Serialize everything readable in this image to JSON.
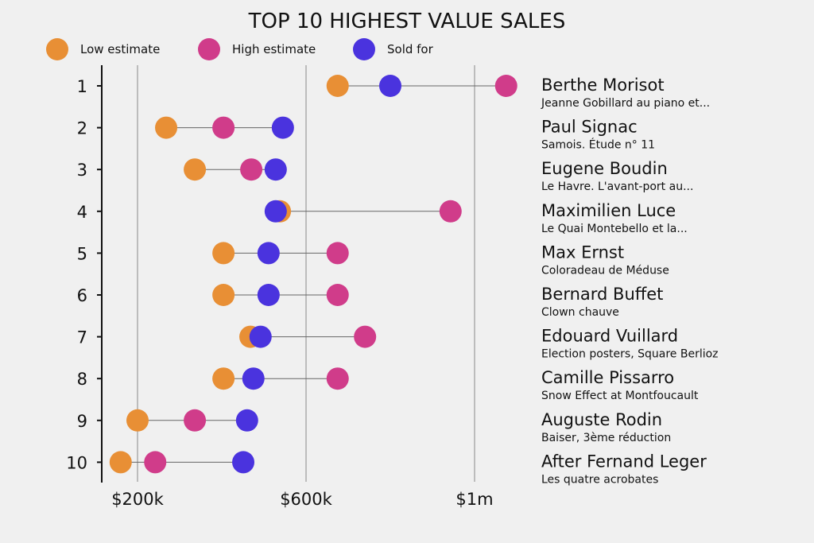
{
  "chart_data": {
    "type": "dot-range",
    "title": "TOP 10 HIGHEST VALUE SALES",
    "legend": [
      {
        "key": "low",
        "label": "Low estimate",
        "color": "#E88F35"
      },
      {
        "key": "high",
        "label": "High estimate",
        "color": "#D03C8A"
      },
      {
        "key": "sold",
        "label": "Sold for",
        "color": "#4A33DE"
      }
    ],
    "legend_position": "top-left",
    "x_ticks": [
      {
        "value": 200,
        "label": "$200k"
      },
      {
        "value": 600,
        "label": "$600k"
      },
      {
        "value": 1000,
        "label": "$1m"
      }
    ],
    "xlim": [
      115,
      1120
    ],
    "units": "thousands USD",
    "grid": true,
    "rows": [
      {
        "rank": "1",
        "artist": "Berthe Morisot",
        "work": "Jeanne Gobillard au piano et...",
        "low": 675,
        "high": 1075,
        "sold": 800
      },
      {
        "rank": "2",
        "artist": "Paul Signac",
        "work": "Samois. Étude n° 11",
        "low": 268,
        "high": 404,
        "sold": 545
      },
      {
        "rank": "3",
        "artist": "Eugene Boudin",
        "work": "Le Havre. L'avant-port au...",
        "low": 336,
        "high": 470,
        "sold": 528
      },
      {
        "rank": "4",
        "artist": "Maximilien Luce",
        "work": "Le Quai Montebello et la...",
        "low": 538,
        "high": 943,
        "sold": 528
      },
      {
        "rank": "5",
        "artist": "Max Ernst",
        "work": "Coloradeau de Méduse",
        "low": 404,
        "high": 675,
        "sold": 511
      },
      {
        "rank": "6",
        "artist": "Bernard Buffet",
        "work": "Clown chauve",
        "low": 404,
        "high": 675,
        "sold": 511
      },
      {
        "rank": "7",
        "artist": "Edouard Vuillard",
        "work": "Election posters, Square Berlioz",
        "low": 468,
        "high": 740,
        "sold": 492
      },
      {
        "rank": "8",
        "artist": "Camille Pissarro",
        "work": "Snow Effect at Montfoucault",
        "low": 404,
        "high": 675,
        "sold": 475
      },
      {
        "rank": "9",
        "artist": "Auguste Rodin",
        "work": "Baiser, 3ème réduction",
        "low": 200,
        "high": 336,
        "sold": 460
      },
      {
        "rank": "10",
        "artist": "After Fernand Leger",
        "work": "Les quatre acrobates",
        "low": 160,
        "high": 242,
        "sold": 451
      }
    ]
  }
}
